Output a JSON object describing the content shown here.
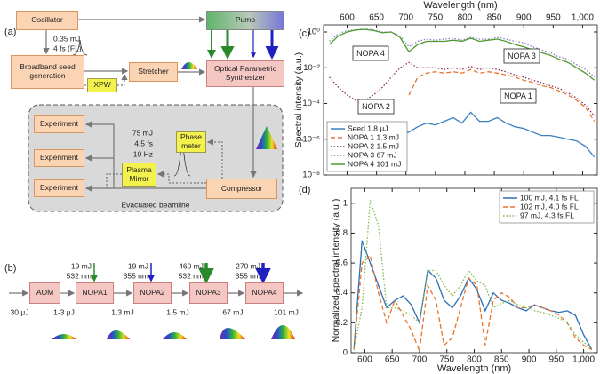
{
  "panel_labels": [
    "(a)",
    "(b)",
    "(c)",
    "(d)"
  ],
  "diagram_a": {
    "nodes": [
      "Oscillator",
      "Pump",
      "Broadband seed generation",
      "XPW",
      "Stretcher",
      "Optical Parametric Synthesizer",
      "Experiment",
      "Experiment",
      "Experiment",
      "Plasma Mirror",
      "Phase meter",
      "Compressor"
    ],
    "annotations": [
      "0.35 mJ",
      "4 fs (FL)",
      "75 mJ",
      "4.5 fs",
      "10 Hz",
      "Evacuated beamline"
    ]
  },
  "diagram_b": {
    "nodes": [
      "AOM",
      "NOPA1",
      "NOPA2",
      "NOPA3",
      "NOPA4"
    ],
    "pumps": [
      {
        "energy": "19 mJ",
        "wavelength": "532 nm"
      },
      {
        "energy": "19 mJ",
        "wavelength": "355 nm"
      },
      {
        "energy": "460 mJ",
        "wavelength": "532 nm"
      },
      {
        "energy": "270 mJ",
        "wavelength": "355 nm"
      }
    ],
    "energies": [
      "30 μJ",
      "1-3 μJ",
      "1.3 mJ",
      "1.5 mJ",
      "67 mJ",
      "101 mJ"
    ]
  },
  "chart_data": [
    {
      "type": "line",
      "x_label": "Wavelength (nm)",
      "y_label": "Spectral intensity (a.u.)",
      "x_axis": "top",
      "log_y": true,
      "legend": "lower left",
      "xlim": [
        560,
        1025
      ],
      "ylim": [
        1e-08,
        2.5
      ],
      "xticks": [
        600,
        650,
        700,
        750,
        800,
        850,
        900,
        950,
        {
          "value": 1000,
          "label": "1,000"
        }
      ],
      "yticks": [
        {
          "value": 1,
          "label": "10⁰"
        },
        {
          "value": 0.01,
          "label": "10⁻²"
        },
        {
          "value": 0.0001,
          "label": "10⁻⁴"
        },
        {
          "value": 1e-06,
          "label": "10⁻⁶"
        },
        {
          "value": 1e-08,
          "label": "10⁻⁸"
        }
      ],
      "annotations": [
        "NOPA 4",
        "NOPA 2",
        "NOPA 3",
        "NOPA 1"
      ],
      "x": [
        570,
        585,
        600,
        615,
        630,
        645,
        660,
        675,
        690,
        705,
        720,
        735,
        750,
        765,
        780,
        795,
        810,
        825,
        840,
        855,
        870,
        885,
        900,
        915,
        930,
        945,
        960,
        975,
        990,
        1005,
        1020
      ],
      "series": [
        {
          "name": "Seed 1.8 μJ",
          "color": "#3a7fbf",
          "style": "solid",
          "values": [
            1.6e-07,
            3.2e-07,
            5e-07,
            1e-06,
            1.6e-06,
            2.5e-06,
            3.2e-06,
            2.5e-06,
            2e-06,
            2.5e-06,
            5e-06,
            8e-06,
            6.3e-06,
            1e-05,
            1.6e-05,
            8e-06,
            3.2e-05,
            1e-05,
            1e-05,
            1.6e-05,
            8e-06,
            5e-06,
            4e-06,
            2.5e-06,
            1.6e-06,
            1.6e-06,
            1.3e-06,
            1e-06,
            8e-07,
            4e-07,
            1e-07
          ]
        },
        {
          "name": "NOPA 1 1.3 mJ",
          "color": "#e8742c",
          "style": "dashed",
          "values": [
            null,
            null,
            null,
            null,
            null,
            null,
            null,
            null,
            null,
            0.0003,
            0.003,
            0.005,
            0.006,
            0.005,
            0.006,
            0.005,
            0.008,
            0.005,
            0.006,
            0.005,
            0.004,
            0.003,
            0.002,
            0.0015,
            0.001,
            0.0008,
            0.0005,
            0.0003,
            0.00015,
            6e-05,
            1e-05
          ]
        },
        {
          "name": "NOPA 2 1.5 mJ",
          "color": "#8e2c5c",
          "style": "dotted",
          "values": [
            0.003,
            0.0008,
            0.0003,
            0.00015,
            0.00015,
            0.0003,
            0.0008,
            0.003,
            0.01,
            0.02,
            0.01,
            0.01,
            0.01,
            0.008,
            0.01,
            0.008,
            0.012,
            0.008,
            0.01,
            0.008,
            0.006,
            0.004,
            0.003,
            0.002,
            0.0015,
            0.001,
            0.0007,
            0.0004,
            0.0002,
            8e-05,
            2e-05
          ]
        },
        {
          "name": "NOPA 3 67 mJ",
          "color": "#8f7ac7",
          "style": "dotted",
          "values": [
            0.3,
            0.8,
            1.2,
            1.3,
            1.5,
            1.3,
            1.0,
            1.0,
            0.6,
            0.15,
            0.3,
            0.4,
            0.35,
            0.4,
            0.45,
            0.35,
            0.5,
            0.4,
            0.4,
            0.5,
            0.4,
            0.3,
            0.25,
            0.15,
            0.1,
            0.07,
            0.04,
            0.03,
            0.015,
            0.008,
            0.003
          ]
        },
        {
          "name": "NOPA 4 101 mJ",
          "color": "#4f9a2e",
          "style": "solid",
          "values": [
            0.2,
            0.6,
            1.0,
            1.3,
            1.4,
            1.2,
            0.9,
            1.0,
            0.5,
            0.08,
            0.2,
            0.3,
            0.3,
            0.3,
            0.35,
            0.3,
            0.45,
            0.3,
            0.35,
            0.4,
            0.3,
            0.2,
            0.15,
            0.1,
            0.07,
            0.05,
            0.03,
            0.02,
            0.01,
            0.005,
            0.002
          ]
        }
      ]
    },
    {
      "type": "line",
      "x_label": "Wavelength (nm)",
      "y_label": "Normalized spectral intensity (a.u.)",
      "x_axis": "bottom",
      "log_y": false,
      "legend": "upper right",
      "xlim": [
        575,
        1025
      ],
      "ylim": [
        0,
        1.1
      ],
      "xticks": [
        600,
        650,
        700,
        750,
        800,
        850,
        900,
        950,
        {
          "value": 1000,
          "label": "1,000"
        }
      ],
      "yticks": [
        0,
        0.2,
        0.4,
        0.6,
        0.8,
        1
      ],
      "x": [
        580,
        595,
        610,
        625,
        640,
        655,
        670,
        685,
        700,
        715,
        730,
        745,
        760,
        775,
        790,
        805,
        820,
        835,
        850,
        865,
        880,
        895,
        910,
        925,
        940,
        955,
        970,
        985,
        1000,
        1015
      ],
      "series": [
        {
          "name": "100 mJ, 4.1 fs FL",
          "color": "#2a6fb8",
          "style": "solid",
          "values": [
            0.02,
            0.75,
            0.6,
            0.45,
            0.3,
            0.35,
            0.38,
            0.32,
            0.2,
            0.55,
            0.5,
            0.35,
            0.3,
            0.38,
            0.5,
            0.42,
            0.28,
            0.4,
            0.35,
            0.33,
            0.3,
            0.28,
            0.32,
            0.3,
            0.28,
            0.27,
            0.28,
            0.25,
            0.12,
            0.02
          ]
        },
        {
          "name": "102 mJ, 4.0 fs FL",
          "color": "#e8742c",
          "style": "dashed",
          "values": [
            0.02,
            0.6,
            0.65,
            0.4,
            0.2,
            0.35,
            0.25,
            0.15,
            0.01,
            0.45,
            0.35,
            0.05,
            0.1,
            0.3,
            0.5,
            0.45,
            0.05,
            0.35,
            0.4,
            0.37,
            0.3,
            0.3,
            0.32,
            0.3,
            0.28,
            0.25,
            0.2,
            0.1,
            0.05,
            0.02
          ]
        },
        {
          "name": "97 mJ, 4.3 fs FL",
          "color": "#7cb84a",
          "style": "dotted",
          "values": [
            0.02,
            0.3,
            1.02,
            0.85,
            0.3,
            0.3,
            0.28,
            0.25,
            0.2,
            0.55,
            0.55,
            0.45,
            0.38,
            0.45,
            0.55,
            0.48,
            0.45,
            0.3,
            0.33,
            0.35,
            0.32,
            0.3,
            0.28,
            0.27,
            0.25,
            0.23,
            0.2,
            0.12,
            0.07,
            0.03
          ]
        }
      ]
    }
  ]
}
